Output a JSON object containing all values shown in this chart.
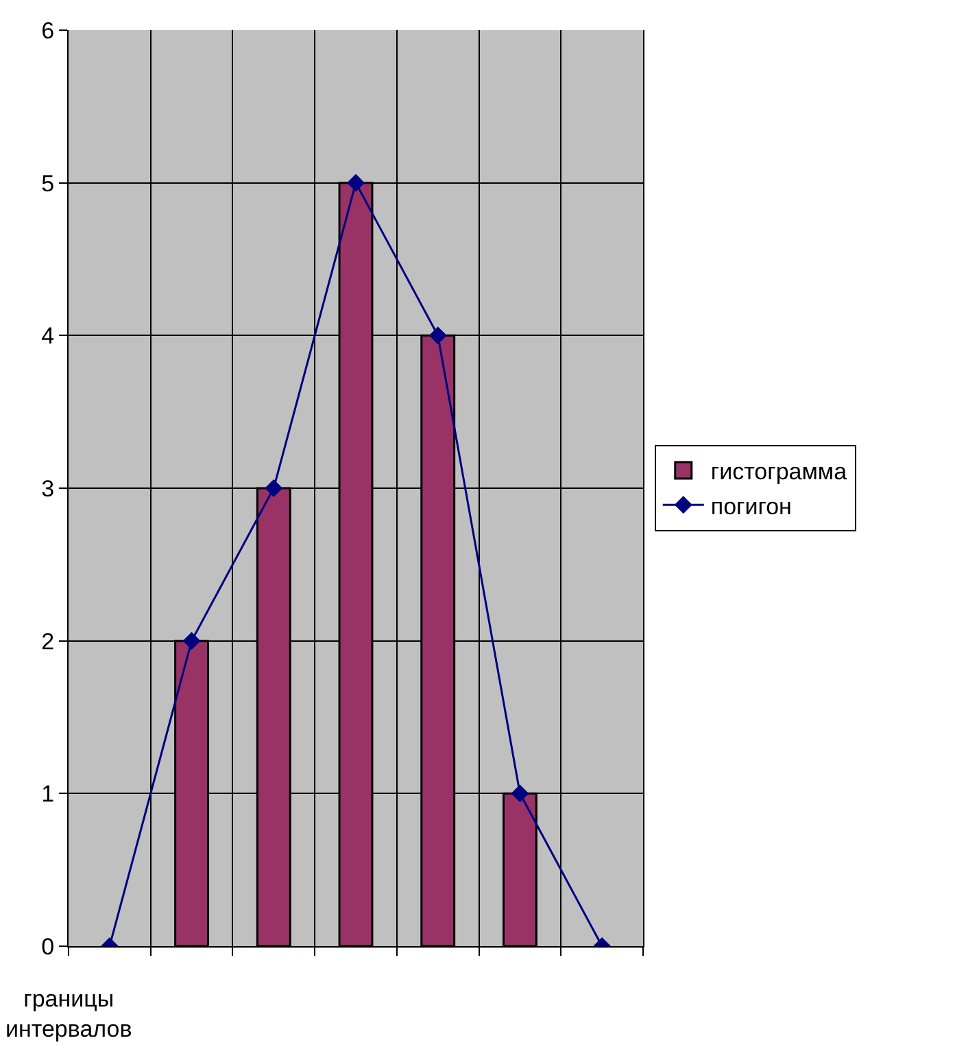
{
  "chart_data": {
    "type": "bar",
    "categories": [
      null,
      null,
      null,
      null,
      null,
      null,
      null
    ],
    "xlabel": "границы интервалов",
    "series": [
      {
        "name": "гистограмма",
        "color": "#993366",
        "values": [
          null,
          2,
          3,
          5,
          4,
          1,
          null
        ]
      },
      {
        "name": "погигон",
        "type": "line",
        "color": "#000080",
        "marker": "diamond",
        "values": [
          0,
          2,
          3,
          5,
          4,
          1,
          0
        ]
      }
    ],
    "ylim": [
      0,
      6
    ],
    "yticks": [
      0,
      1,
      2,
      3,
      4,
      5,
      6
    ],
    "grid": true,
    "legend": "right"
  }
}
